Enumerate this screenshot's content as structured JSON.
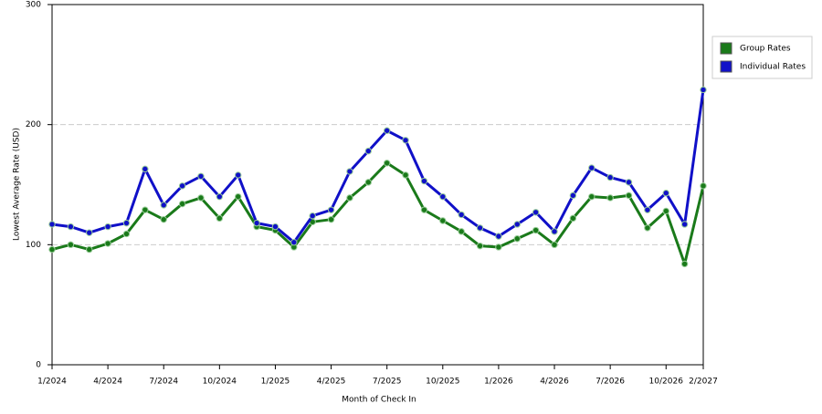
{
  "chart_data": {
    "type": "line",
    "x_label": "Month of Check In",
    "y_label": "Lowest Average Rate (USD)",
    "categories": [
      "1/2024",
      null,
      null,
      "4/2024",
      null,
      null,
      "7/2024",
      null,
      null,
      "10/2024",
      null,
      null,
      "1/2025",
      null,
      null,
      "4/2025",
      null,
      null,
      "7/2025",
      null,
      null,
      "10/2025",
      null,
      null,
      "1/2026",
      null,
      null,
      "4/2026",
      null,
      null,
      "7/2026",
      null,
      null,
      "10/2026",
      null,
      "2/2027"
    ],
    "series": [
      {
        "name": "Group Rates",
        "color": "#1a7a1a",
        "values": [
          96,
          100,
          96,
          101,
          109,
          129,
          121,
          134,
          139,
          122,
          140,
          115,
          112,
          98,
          119,
          121,
          139,
          152,
          168,
          158,
          129,
          120,
          111,
          99,
          98,
          105,
          112,
          100,
          122,
          140,
          139,
          141,
          114,
          128,
          84,
          149
        ]
      },
      {
        "name": "Individual Rates",
        "color": "#1010c8",
        "values": [
          117,
          115,
          110,
          115,
          118,
          163,
          133,
          149,
          157,
          140,
          158,
          118,
          115,
          102,
          124,
          129,
          161,
          178,
          195,
          187,
          153,
          140,
          125,
          114,
          107,
          117,
          127,
          111,
          141,
          164,
          156,
          152,
          129,
          143,
          117,
          229
        ]
      }
    ],
    "ylim": [
      0,
      300
    ],
    "yticks": [
      0,
      100,
      200,
      300
    ],
    "grid": true,
    "legend": "right"
  }
}
